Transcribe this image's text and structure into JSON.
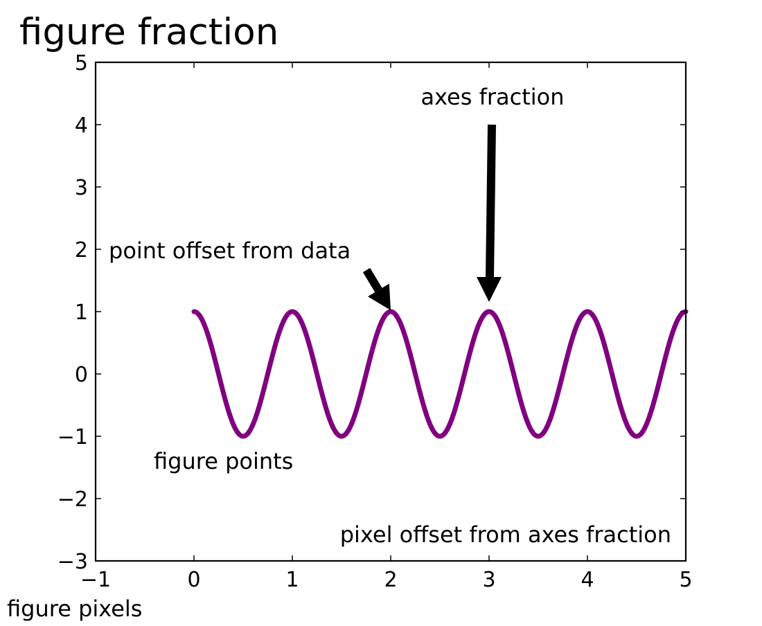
{
  "chart_data": {
    "type": "line",
    "xlim": [
      -1,
      5
    ],
    "ylim": [
      -3,
      5
    ],
    "x_ticks": [
      -1,
      0,
      1,
      2,
      3,
      4,
      5
    ],
    "y_ticks": [
      -3,
      -2,
      -1,
      0,
      1,
      2,
      3,
      4,
      5
    ],
    "x_tick_labels": [
      "−1",
      "0",
      "1",
      "2",
      "3",
      "4",
      "5"
    ],
    "y_tick_labels": [
      "−3",
      "−2",
      "−1",
      "0",
      "1",
      "2",
      "3",
      "4",
      "5"
    ],
    "grid": false,
    "series": [
      {
        "function": "cos(2*pi*x)",
        "x_range": [
          0,
          5
        ],
        "color": "#800080"
      }
    ],
    "annotations": [
      {
        "id": "figure_fraction",
        "text": "figure fraction"
      },
      {
        "id": "axes_fraction",
        "text": "axes fraction",
        "arrow_to": [
          3,
          1
        ],
        "arrow_style": "thick"
      },
      {
        "id": "point_offset",
        "text": "point offset from data",
        "arrow_to": [
          2,
          1
        ],
        "arrow_style": "short"
      },
      {
        "id": "figure_points",
        "text": "figure points"
      },
      {
        "id": "pixel_offset",
        "text": "pixel offset from axes fraction"
      },
      {
        "id": "figure_pixels",
        "text": "figure pixels"
      }
    ]
  }
}
